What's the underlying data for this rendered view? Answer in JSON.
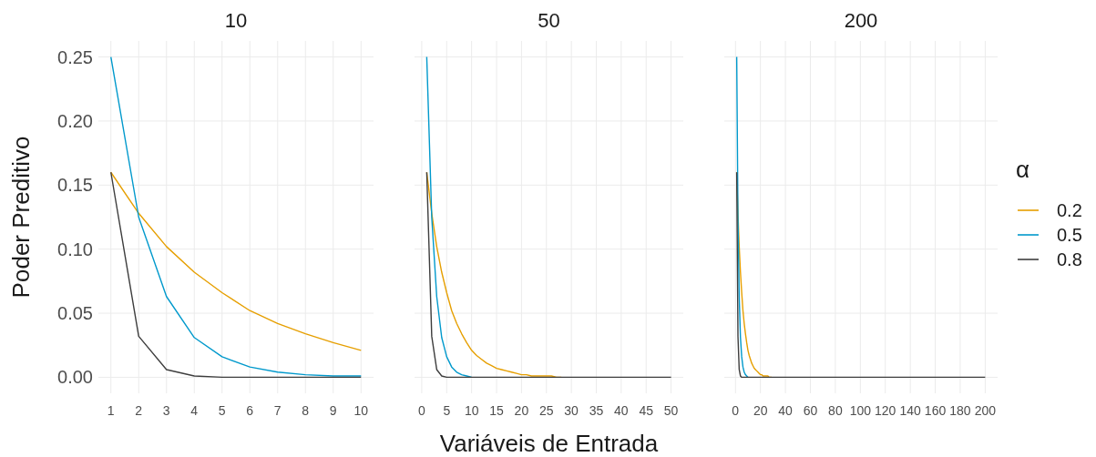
{
  "chart_data": [
    {
      "type": "line",
      "title": "10",
      "ylabel": "Poder Preditivo",
      "x": [
        1,
        2,
        3,
        4,
        5,
        6,
        7,
        8,
        9,
        10
      ],
      "xlim": [
        0.55,
        10.45
      ],
      "xticks": [
        1,
        2,
        3,
        4,
        5,
        6,
        7,
        8,
        9,
        10
      ],
      "ylim": [
        -0.0125,
        0.2625
      ],
      "yticks": [
        {
          "value": 0,
          "label": "0.00"
        },
        {
          "value": 0.05,
          "label": "0.05"
        },
        {
          "value": 0.1,
          "label": "0.10"
        },
        {
          "value": 0.15,
          "label": "0.15"
        },
        {
          "value": 0.2,
          "label": "0.20"
        },
        {
          "value": 0.25,
          "label": "0.25"
        }
      ],
      "grid": true,
      "series": [
        {
          "color": "#e69f00",
          "values": [
            0.16,
            0.128,
            0.102,
            0.082,
            0.066,
            0.052,
            0.042,
            0.034,
            0.027,
            0.021
          ]
        },
        {
          "color": "#0099cc",
          "values": [
            0.25,
            0.125,
            0.063,
            0.031,
            0.016,
            0.008,
            0.004,
            0.002,
            0.001,
            0.001
          ]
        },
        {
          "color": "#3d3d3d",
          "values": [
            0.16,
            0.032,
            0.006,
            0.001,
            0,
            0,
            0,
            0,
            0,
            0
          ]
        }
      ]
    },
    {
      "type": "line",
      "title": "50",
      "xlabel": "Variáveis de Entrada",
      "x": [
        1,
        2,
        3,
        4,
        5,
        6,
        7,
        8,
        9,
        10,
        11,
        12,
        13,
        14,
        15,
        16,
        17,
        18,
        19,
        20,
        21,
        22,
        23,
        24,
        25,
        26,
        27,
        28,
        29,
        30,
        31,
        32,
        33,
        34,
        35,
        36,
        37,
        38,
        39,
        40,
        41,
        42,
        43,
        44,
        45,
        46,
        47,
        48,
        49,
        50
      ],
      "xlim": [
        -1.45,
        52.45
      ],
      "xticks": [
        0,
        5,
        10,
        15,
        20,
        25,
        30,
        35,
        40,
        45,
        50
      ],
      "ylim": [
        -0.0125,
        0.2625
      ],
      "yticks": [
        0,
        0.05,
        0.1,
        0.15,
        0.2,
        0.25
      ],
      "tick_labels": "x",
      "grid": true,
      "series": [
        {
          "color": "#e69f00",
          "values": [
            0.16,
            0.128,
            0.102,
            0.082,
            0.066,
            0.052,
            0.042,
            0.034,
            0.027,
            0.021,
            0.017,
            0.014,
            0.011,
            0.009,
            0.007,
            0.006,
            0.005,
            0.004,
            0.003,
            0.002,
            0.002,
            0.001,
            0.001,
            0.001,
            0.001,
            0.001,
            0,
            0,
            null,
            null,
            null,
            null,
            null,
            null,
            null,
            null,
            null,
            null,
            null,
            null,
            null,
            null,
            null,
            null,
            null,
            null,
            null,
            null,
            null,
            null
          ]
        },
        {
          "color": "#0099cc",
          "values": [
            0.25,
            0.125,
            0.063,
            0.031,
            0.016,
            0.008,
            0.004,
            0.002,
            0.001,
            0,
            null,
            null,
            null,
            null,
            null,
            null,
            null,
            null,
            null,
            null,
            null,
            null,
            null,
            null,
            null,
            null,
            null,
            null,
            null,
            null,
            null,
            null,
            null,
            null,
            null,
            null,
            null,
            null,
            null,
            null,
            null,
            null,
            null,
            null,
            null,
            null,
            null,
            null,
            null,
            null
          ]
        },
        {
          "color": "#3d3d3d",
          "values": [
            0.16,
            0.032,
            0.006,
            0.001,
            0,
            0,
            0,
            0,
            0,
            0,
            0,
            0,
            0,
            0,
            0,
            0,
            0,
            0,
            0,
            0,
            0,
            0,
            0,
            0,
            0,
            0,
            0,
            0,
            0,
            0,
            0,
            0,
            0,
            0,
            0,
            0,
            0,
            0,
            0,
            0,
            0,
            0,
            0,
            0,
            0,
            0,
            0,
            0,
            0,
            0
          ]
        }
      ]
    },
    {
      "type": "line",
      "title": "200",
      "legend_title": "α",
      "legend": "right",
      "x": [
        1,
        2,
        3,
        4,
        5,
        6,
        7,
        8,
        9,
        10,
        11,
        12,
        13,
        14,
        15,
        16,
        17,
        18,
        19,
        20,
        21,
        22,
        23,
        24,
        25,
        26,
        27,
        28,
        29,
        30,
        40,
        60,
        80,
        100,
        120,
        140,
        160,
        180,
        200
      ],
      "xlim": [
        -8.95,
        209.95
      ],
      "xticks": [
        0,
        20,
        40,
        60,
        80,
        100,
        120,
        140,
        160,
        180,
        200
      ],
      "ylim": [
        -0.0125,
        0.2625
      ],
      "yticks": [
        0,
        0.05,
        0.1,
        0.15,
        0.2,
        0.25
      ],
      "tick_labels": "x",
      "grid": true,
      "series": [
        {
          "name": "0.2",
          "color": "#e69f00",
          "values": [
            0.16,
            0.128,
            0.102,
            0.082,
            0.066,
            0.052,
            0.042,
            0.034,
            0.027,
            0.021,
            0.017,
            0.014,
            0.011,
            0.009,
            0.007,
            0.006,
            0.005,
            0.004,
            0.003,
            0.002,
            0.002,
            0.001,
            0.001,
            0.001,
            0.001,
            0.001,
            0,
            0,
            0,
            null,
            null,
            null,
            null,
            null,
            null,
            null,
            null,
            null,
            null
          ]
        },
        {
          "name": "0.5",
          "color": "#0099cc",
          "values": [
            0.25,
            0.125,
            0.063,
            0.031,
            0.016,
            0.008,
            0.004,
            0.002,
            0.001,
            0,
            null,
            null,
            null,
            null,
            null,
            null,
            null,
            null,
            null,
            null,
            null,
            null,
            null,
            null,
            null,
            null,
            null,
            null,
            null,
            null,
            null,
            null,
            null,
            null,
            null,
            null,
            null,
            null,
            null
          ]
        },
        {
          "name": "0.8",
          "color": "#3d3d3d",
          "values": [
            0.16,
            0.032,
            0.006,
            0.001,
            0,
            0,
            0,
            0,
            0,
            0,
            0,
            0,
            0,
            0,
            0,
            0,
            0,
            0,
            0,
            0,
            0,
            0,
            0,
            0,
            0,
            0,
            0,
            0,
            0,
            0,
            0,
            0,
            0,
            0,
            0,
            0,
            0,
            0,
            0
          ]
        }
      ]
    }
  ]
}
